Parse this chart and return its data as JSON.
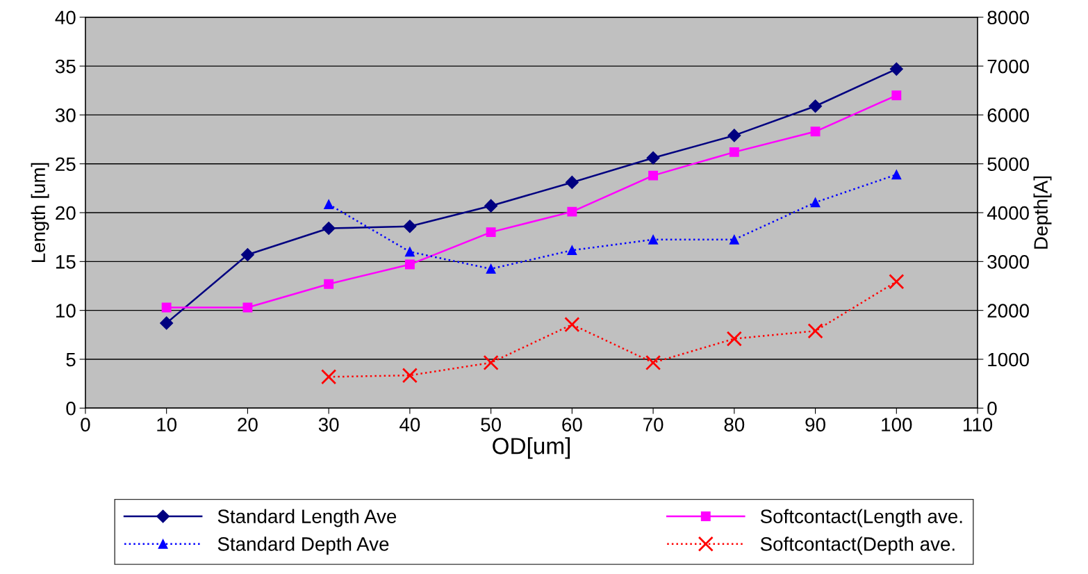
{
  "chart_data": {
    "type": "line",
    "xlabel": "OD[um]",
    "ylabel": "Length [um]",
    "y2label": "Depth[A]",
    "x": [
      10,
      20,
      30,
      40,
      50,
      60,
      70,
      80,
      90,
      100
    ],
    "series": [
      {
        "name": "Standard Length Ave",
        "color": "#000080",
        "marker": "diamond",
        "line_style": "solid",
        "values": [
          8.7,
          15.7,
          18.4,
          18.6,
          20.7,
          23.1,
          25.6,
          27.9,
          30.9,
          34.7
        ]
      },
      {
        "name": "Standard Depth Ave",
        "color": "#0000ff",
        "marker": "triangle",
        "line_style": "dotted",
        "axis": "y2",
        "values": [
          null,
          null,
          4170,
          3200,
          2850,
          3230,
          3450,
          3450,
          4210,
          4780
        ]
      },
      {
        "name": "Softcontact(Length ave.",
        "color": "#ff00ff",
        "marker": "square",
        "line_style": "solid",
        "values": [
          10.3,
          10.3,
          12.7,
          14.7,
          18.0,
          20.1,
          23.8,
          26.2,
          28.3,
          32.0
        ]
      },
      {
        "name": "Softcontact(Depth ave.",
        "color": "#ff0000",
        "marker": "cross",
        "line_style": "dotted",
        "axis": "y2",
        "values": [
          null,
          null,
          640,
          670,
          930,
          1710,
          930,
          1420,
          1580,
          2590
        ]
      }
    ],
    "xlim": [
      0,
      110
    ],
    "xticks": [
      0,
      10,
      20,
      30,
      40,
      50,
      60,
      70,
      80,
      90,
      100,
      110
    ],
    "ylim": [
      0,
      40
    ],
    "yticks": [
      0,
      5,
      10,
      15,
      20,
      25,
      30,
      35,
      40
    ],
    "y2lim": [
      0,
      8000
    ],
    "y2ticks": [
      0,
      1000,
      2000,
      3000,
      4000,
      5000,
      6000,
      7000,
      8000
    ],
    "grid": "y",
    "legend": "bottom"
  }
}
